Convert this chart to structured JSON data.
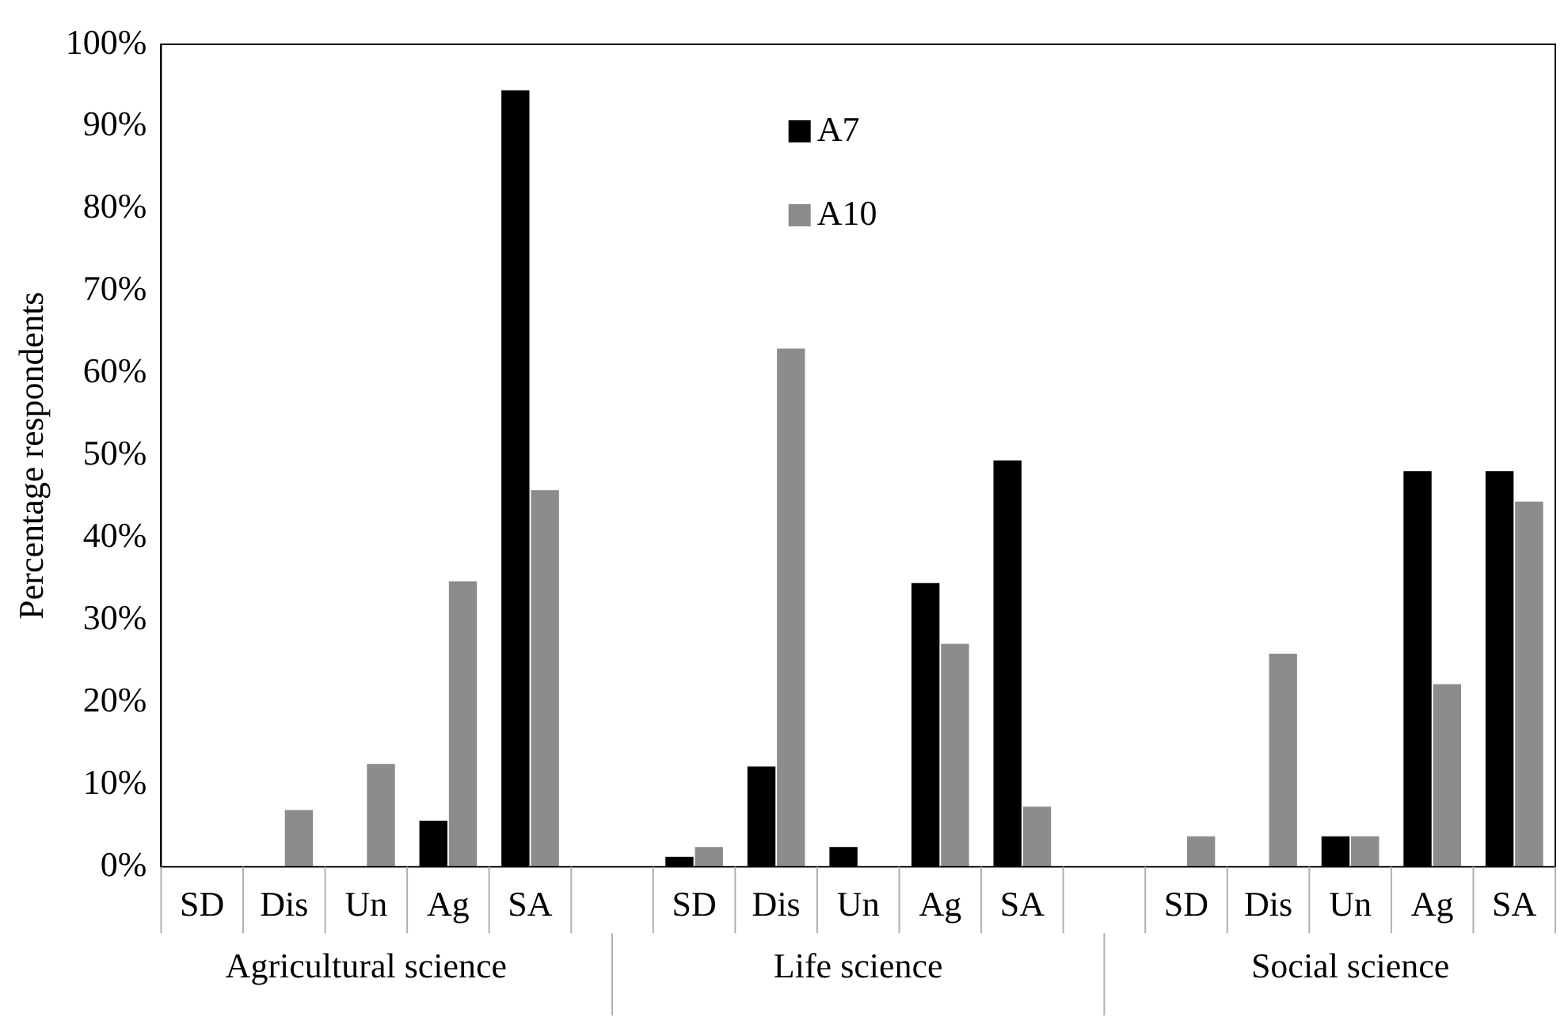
{
  "chart_data": {
    "type": "bar",
    "ylabel": "Percentage respondents",
    "categories": [
      "SD",
      "Dis",
      "Un",
      "Ag",
      "SA",
      null,
      "SD",
      "Dis",
      "Un",
      "Ag",
      "SA",
      null,
      "SD",
      "Dis",
      "Un",
      "Ag",
      "SA"
    ],
    "series": [
      {
        "name": "A7",
        "color": "#000000",
        "values": [
          0,
          0,
          0,
          5.6,
          94.4,
          null,
          1.2,
          12.2,
          2.4,
          34.5,
          49.4,
          null,
          0,
          0,
          3.7,
          48.1,
          48.1
        ]
      },
      {
        "name": "A10",
        "color": "#8c8c8c",
        "values": [
          0,
          6.9,
          12.5,
          34.7,
          45.8,
          null,
          2.4,
          63,
          0,
          27.1,
          7.3,
          null,
          3.7,
          25.9,
          3.7,
          22.2,
          44.4
        ]
      }
    ],
    "ylim": [
      0,
      100
    ],
    "yticks": [
      {
        "value": 0,
        "label": "0%"
      },
      {
        "value": 10,
        "label": "10%"
      },
      {
        "value": 20,
        "label": "20%"
      },
      {
        "value": 30,
        "label": "30%"
      },
      {
        "value": 40,
        "label": "40%"
      },
      {
        "value": 50,
        "label": "50%"
      },
      {
        "value": 60,
        "label": "60%"
      },
      {
        "value": 70,
        "label": "70%"
      },
      {
        "value": 80,
        "label": "80%"
      },
      {
        "value": 90,
        "label": "90%"
      },
      {
        "value": 100,
        "label": "100%"
      }
    ],
    "annotations": [
      "Agricultural science",
      "Life science",
      "Social science"
    ],
    "grid": false,
    "legend": "top"
  }
}
